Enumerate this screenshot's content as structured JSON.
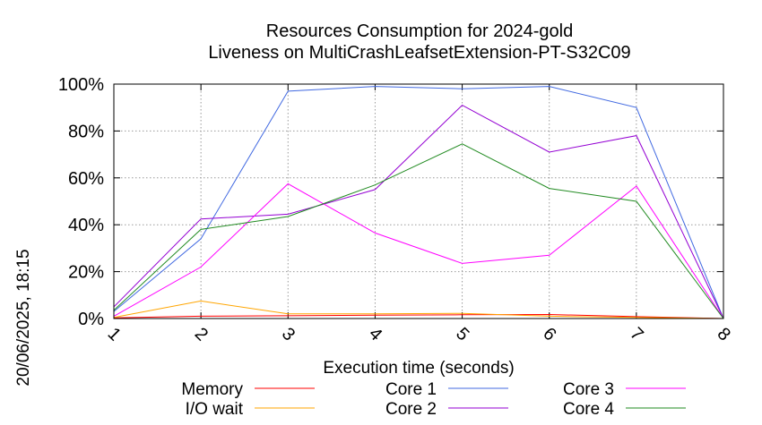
{
  "chart_data": {
    "type": "line",
    "title": "Resources Consumption for 2024-gold",
    "subtitle": "Liveness on MultiCrashLeafsetExtension-PT-S32C09",
    "xlabel": "Execution time (seconds)",
    "ylabel": "",
    "side_label": "20/06/2025, 18:15",
    "x": [
      1,
      2,
      3,
      4,
      5,
      6,
      7,
      8
    ],
    "x_tick_labels": [
      "1",
      "2",
      "3",
      "4",
      "5",
      "6",
      "7",
      "8"
    ],
    "xlim": [
      1,
      8
    ],
    "ylim": [
      0,
      100
    ],
    "y_ticks": [
      0,
      20,
      40,
      60,
      80,
      100
    ],
    "y_tick_labels": [
      "0%",
      "20%",
      "40%",
      "60%",
      "80%",
      "100%"
    ],
    "grid": true,
    "legend_position": "bottom",
    "series": [
      {
        "name": "Memory",
        "color": "#ff0000",
        "values": [
          0.3,
          1.0,
          1.2,
          1.4,
          1.6,
          1.7,
          0.8,
          0
        ]
      },
      {
        "name": "I/O wait",
        "color": "#ffa500",
        "values": [
          0.5,
          7.5,
          2.0,
          2.0,
          2.2,
          1.0,
          0.5,
          0
        ]
      },
      {
        "name": "Core 1",
        "color": "#4169e1",
        "values": [
          3,
          34,
          97,
          99,
          98,
          99,
          90,
          0
        ]
      },
      {
        "name": "Core 2",
        "color": "#9400d3",
        "values": [
          5,
          42.5,
          44.5,
          55,
          91,
          71,
          78,
          0
        ]
      },
      {
        "name": "Core 3",
        "color": "#ff00ff",
        "values": [
          1,
          22,
          57.5,
          36.5,
          23.5,
          27,
          56.5,
          0
        ]
      },
      {
        "name": "Core 4",
        "color": "#228b22",
        "values": [
          3.5,
          38,
          43.5,
          57,
          74.5,
          55.5,
          50,
          0
        ]
      }
    ]
  }
}
